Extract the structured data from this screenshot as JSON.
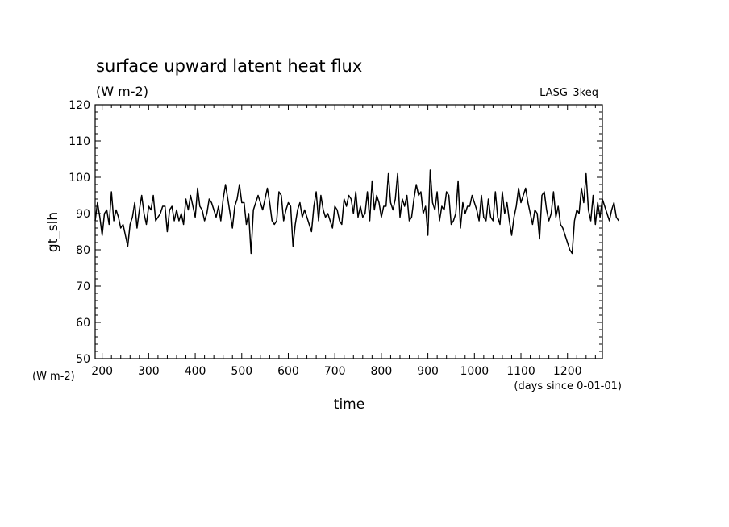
{
  "chart_data": {
    "type": "line",
    "title": "surface upward latent heat flux",
    "units": "(W m-2)",
    "experiment": "LASG_3keq",
    "ylabel": "gt_slh",
    "ylabel_units": "(W m-2)",
    "xlabel": "time",
    "xlabel_units": "(days since 0-01-01)",
    "xlim": [
      185,
      1275
    ],
    "ylim": [
      50,
      120
    ],
    "x_ticks": [
      200,
      300,
      400,
      500,
      600,
      700,
      800,
      900,
      1000,
      1100,
      1200
    ],
    "x_tick_labels": [
      "200",
      "300",
      "400",
      "500",
      "600",
      "700",
      "800",
      "900",
      "1000",
      "1100",
      "1200"
    ],
    "y_ticks": [
      50,
      60,
      70,
      80,
      90,
      100,
      110,
      120
    ],
    "y_tick_labels": [
      "50",
      "60",
      "70",
      "80",
      "90",
      "100",
      "110",
      "120"
    ],
    "grid": false,
    "series": [
      {
        "color": "#000000",
        "x_start": 185,
        "x_step": 5,
        "values": [
          88,
          93,
          89,
          84,
          90,
          91,
          87,
          96,
          88,
          91,
          89,
          86,
          87,
          84,
          81,
          87,
          89,
          93,
          86,
          91,
          95,
          90,
          87,
          92,
          91,
          95,
          88,
          89,
          90,
          92,
          92,
          85,
          91,
          92,
          88,
          91,
          88,
          90,
          87,
          94,
          91,
          95,
          92,
          89,
          97,
          92,
          91,
          88,
          90,
          94,
          93,
          91,
          89,
          92,
          88,
          94,
          98,
          94,
          90,
          86,
          92,
          94,
          98,
          93,
          93,
          87,
          90,
          79,
          91,
          93,
          95,
          93,
          91,
          94,
          97,
          93,
          88,
          87,
          88,
          96,
          95,
          88,
          91,
          93,
          92,
          81,
          87,
          91,
          93,
          89,
          91,
          89,
          87,
          85,
          92,
          96,
          88,
          95,
          91,
          89,
          90,
          88,
          86,
          92,
          91,
          88,
          87,
          94,
          92,
          95,
          94,
          90,
          96,
          89,
          92,
          89,
          90,
          96,
          88,
          99,
          91,
          95,
          93,
          89,
          92,
          92,
          101,
          93,
          91,
          94,
          101,
          89,
          94,
          92,
          95,
          88,
          89,
          94,
          98,
          95,
          96,
          90,
          92,
          84,
          102,
          93,
          91,
          96,
          88,
          92,
          91,
          96,
          95,
          87,
          88,
          90,
          99,
          86,
          93,
          90,
          92,
          92,
          95,
          93,
          91,
          88,
          95,
          89,
          88,
          94,
          89,
          88,
          96,
          89,
          87,
          96,
          90,
          93,
          88,
          84,
          89,
          92,
          97,
          93,
          95,
          97,
          93,
          90,
          87,
          91,
          90,
          83,
          95,
          96,
          91,
          88,
          90,
          96,
          89,
          92,
          87,
          86,
          84,
          82,
          80,
          79,
          88,
          91,
          90,
          97,
          93,
          101,
          91,
          88,
          95,
          87,
          93,
          89,
          94,
          92,
          90,
          88,
          91,
          93,
          89,
          88
        ]
      }
    ]
  }
}
